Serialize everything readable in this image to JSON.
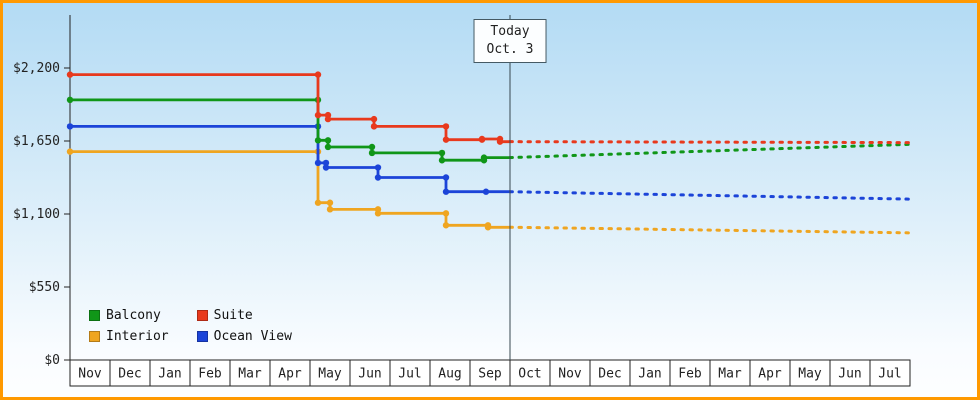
{
  "chart": {
    "today": {
      "line1": "Today",
      "line2": "Oct. 3",
      "x": 11
    },
    "y_axis": {
      "max": 2200,
      "ticks": [
        {
          "label": "$0",
          "value": 0
        },
        {
          "label": "$550",
          "value": 550
        },
        {
          "label": "$1,100",
          "value": 1100
        },
        {
          "label": "$1,650",
          "value": 1650
        },
        {
          "label": "$2,200",
          "value": 2200
        }
      ]
    },
    "x_axis": {
      "months": [
        "Nov",
        "Dec",
        "Jan",
        "Feb",
        "Mar",
        "Apr",
        "May",
        "Jun",
        "Jul",
        "Aug",
        "Sep",
        "Oct",
        "Nov",
        "Dec",
        "Jan",
        "Feb",
        "Mar",
        "Apr",
        "May",
        "Jun",
        "Jul"
      ]
    },
    "series": [
      {
        "name": "Balcony",
        "color": "#109618",
        "solid": [
          [
            0,
            1960
          ],
          [
            6.2,
            1960
          ],
          [
            6.2,
            1655
          ],
          [
            6.45,
            1655
          ],
          [
            6.45,
            1605
          ],
          [
            7.55,
            1605
          ],
          [
            7.55,
            1560
          ],
          [
            9.3,
            1560
          ],
          [
            9.3,
            1505
          ],
          [
            10.35,
            1505
          ],
          [
            10.35,
            1525
          ],
          [
            11,
            1525
          ]
        ],
        "dotted": [
          [
            11,
            1525
          ],
          [
            21,
            1625
          ]
        ]
      },
      {
        "name": "Suite",
        "color": "#e8391d",
        "solid": [
          [
            0,
            2150
          ],
          [
            6.2,
            2150
          ],
          [
            6.2,
            1845
          ],
          [
            6.45,
            1845
          ],
          [
            6.45,
            1815
          ],
          [
            7.6,
            1815
          ],
          [
            7.6,
            1760
          ],
          [
            9.4,
            1760
          ],
          [
            9.4,
            1660
          ],
          [
            10.3,
            1660
          ],
          [
            10.3,
            1665
          ],
          [
            10.75,
            1665
          ],
          [
            10.75,
            1645
          ],
          [
            11,
            1645
          ]
        ],
        "dotted": [
          [
            11,
            1645
          ],
          [
            21,
            1638
          ]
        ]
      },
      {
        "name": "Interior",
        "color": "#efa520",
        "solid": [
          [
            0,
            1570
          ],
          [
            6.2,
            1570
          ],
          [
            6.2,
            1185
          ],
          [
            6.5,
            1185
          ],
          [
            6.5,
            1135
          ],
          [
            7.7,
            1135
          ],
          [
            7.7,
            1105
          ],
          [
            9.4,
            1105
          ],
          [
            9.4,
            1015
          ],
          [
            10.45,
            1015
          ],
          [
            10.45,
            1000
          ],
          [
            11,
            1000
          ]
        ],
        "dotted": [
          [
            11,
            1000
          ],
          [
            21,
            958
          ]
        ]
      },
      {
        "name": "Ocean View",
        "color": "#1c44d8",
        "solid": [
          [
            0,
            1760
          ],
          [
            6.2,
            1760
          ],
          [
            6.2,
            1485
          ],
          [
            6.4,
            1485
          ],
          [
            6.4,
            1450
          ],
          [
            7.7,
            1450
          ],
          [
            7.7,
            1375
          ],
          [
            9.4,
            1375
          ],
          [
            9.4,
            1268
          ],
          [
            10.4,
            1268
          ],
          [
            11,
            1268
          ]
        ],
        "dotted": [
          [
            11,
            1268
          ],
          [
            21,
            1212
          ]
        ]
      }
    ],
    "chart_data_note": "step price-history lines; solid = observed prices Nov through Oct 3, dotted = projection"
  },
  "chart_data": {
    "type": "line",
    "title": "",
    "x_tick_labels": [
      "Nov",
      "Dec",
      "Jan",
      "Feb",
      "Mar",
      "Apr",
      "May",
      "Jun",
      "Jul",
      "Aug",
      "Sep",
      "Oct",
      "Nov",
      "Dec",
      "Jan",
      "Feb",
      "Mar",
      "Apr",
      "May",
      "Jun",
      "Jul"
    ],
    "ylim": [
      0,
      2200
    ],
    "y_tick_labels": [
      "$0",
      "$550",
      "$1,100",
      "$1,650",
      "$2,200"
    ],
    "legend_position": "bottom-left",
    "annotation": "Today Oct. 3",
    "series": [
      {
        "name": "Balcony",
        "style": "step+dots then dotted projection",
        "values_by_month": [
          [
            0,
            1960
          ],
          [
            6.2,
            1655
          ],
          [
            7.55,
            1560
          ],
          [
            9.3,
            1505
          ],
          [
            11,
            1525
          ],
          [
            21,
            1625
          ]
        ]
      },
      {
        "name": "Suite",
        "style": "step+dots then dotted projection",
        "values_by_month": [
          [
            0,
            2150
          ],
          [
            6.2,
            1845
          ],
          [
            7.6,
            1760
          ],
          [
            9.4,
            1660
          ],
          [
            11,
            1645
          ],
          [
            21,
            1638
          ]
        ]
      },
      {
        "name": "Interior",
        "style": "step+dots then dotted projection",
        "values_by_month": [
          [
            0,
            1570
          ],
          [
            6.2,
            1185
          ],
          [
            7.7,
            1105
          ],
          [
            9.4,
            1015
          ],
          [
            11,
            1000
          ],
          [
            21,
            958
          ]
        ]
      },
      {
        "name": "Ocean View",
        "style": "step+dots then dotted projection",
        "values_by_month": [
          [
            0,
            1760
          ],
          [
            6.2,
            1485
          ],
          [
            7.7,
            1375
          ],
          [
            9.4,
            1268
          ],
          [
            11,
            1268
          ],
          [
            21,
            1212
          ]
        ]
      }
    ]
  }
}
